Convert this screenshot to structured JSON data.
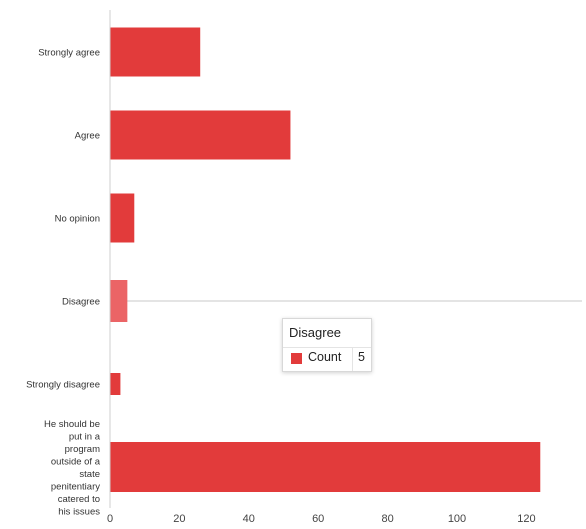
{
  "chart_data": {
    "type": "bar",
    "orientation": "horizontal",
    "categories": [
      "Strongly agree",
      "Agree",
      "No opinion",
      "Disagree",
      "Strongly disagree",
      "He should be put in a program outside of a state penitentiary catered to his issues"
    ],
    "series": [
      {
        "values": [
          26,
          52,
          7,
          5,
          3,
          124
        ]
      }
    ],
    "xlim": [
      0,
      135
    ],
    "xticks": [
      0,
      20,
      40,
      60,
      80,
      100,
      120
    ],
    "grid": false,
    "highlighted_category": "Disagree",
    "colors": {
      "bar": "#e23b3b",
      "bar_highlight": "#eb6466",
      "hover_line": "#c8c8c8"
    }
  },
  "tooltip": {
    "title": "Disagree",
    "key": "Count",
    "value": "5",
    "swatch_color": "#e23b3b"
  }
}
